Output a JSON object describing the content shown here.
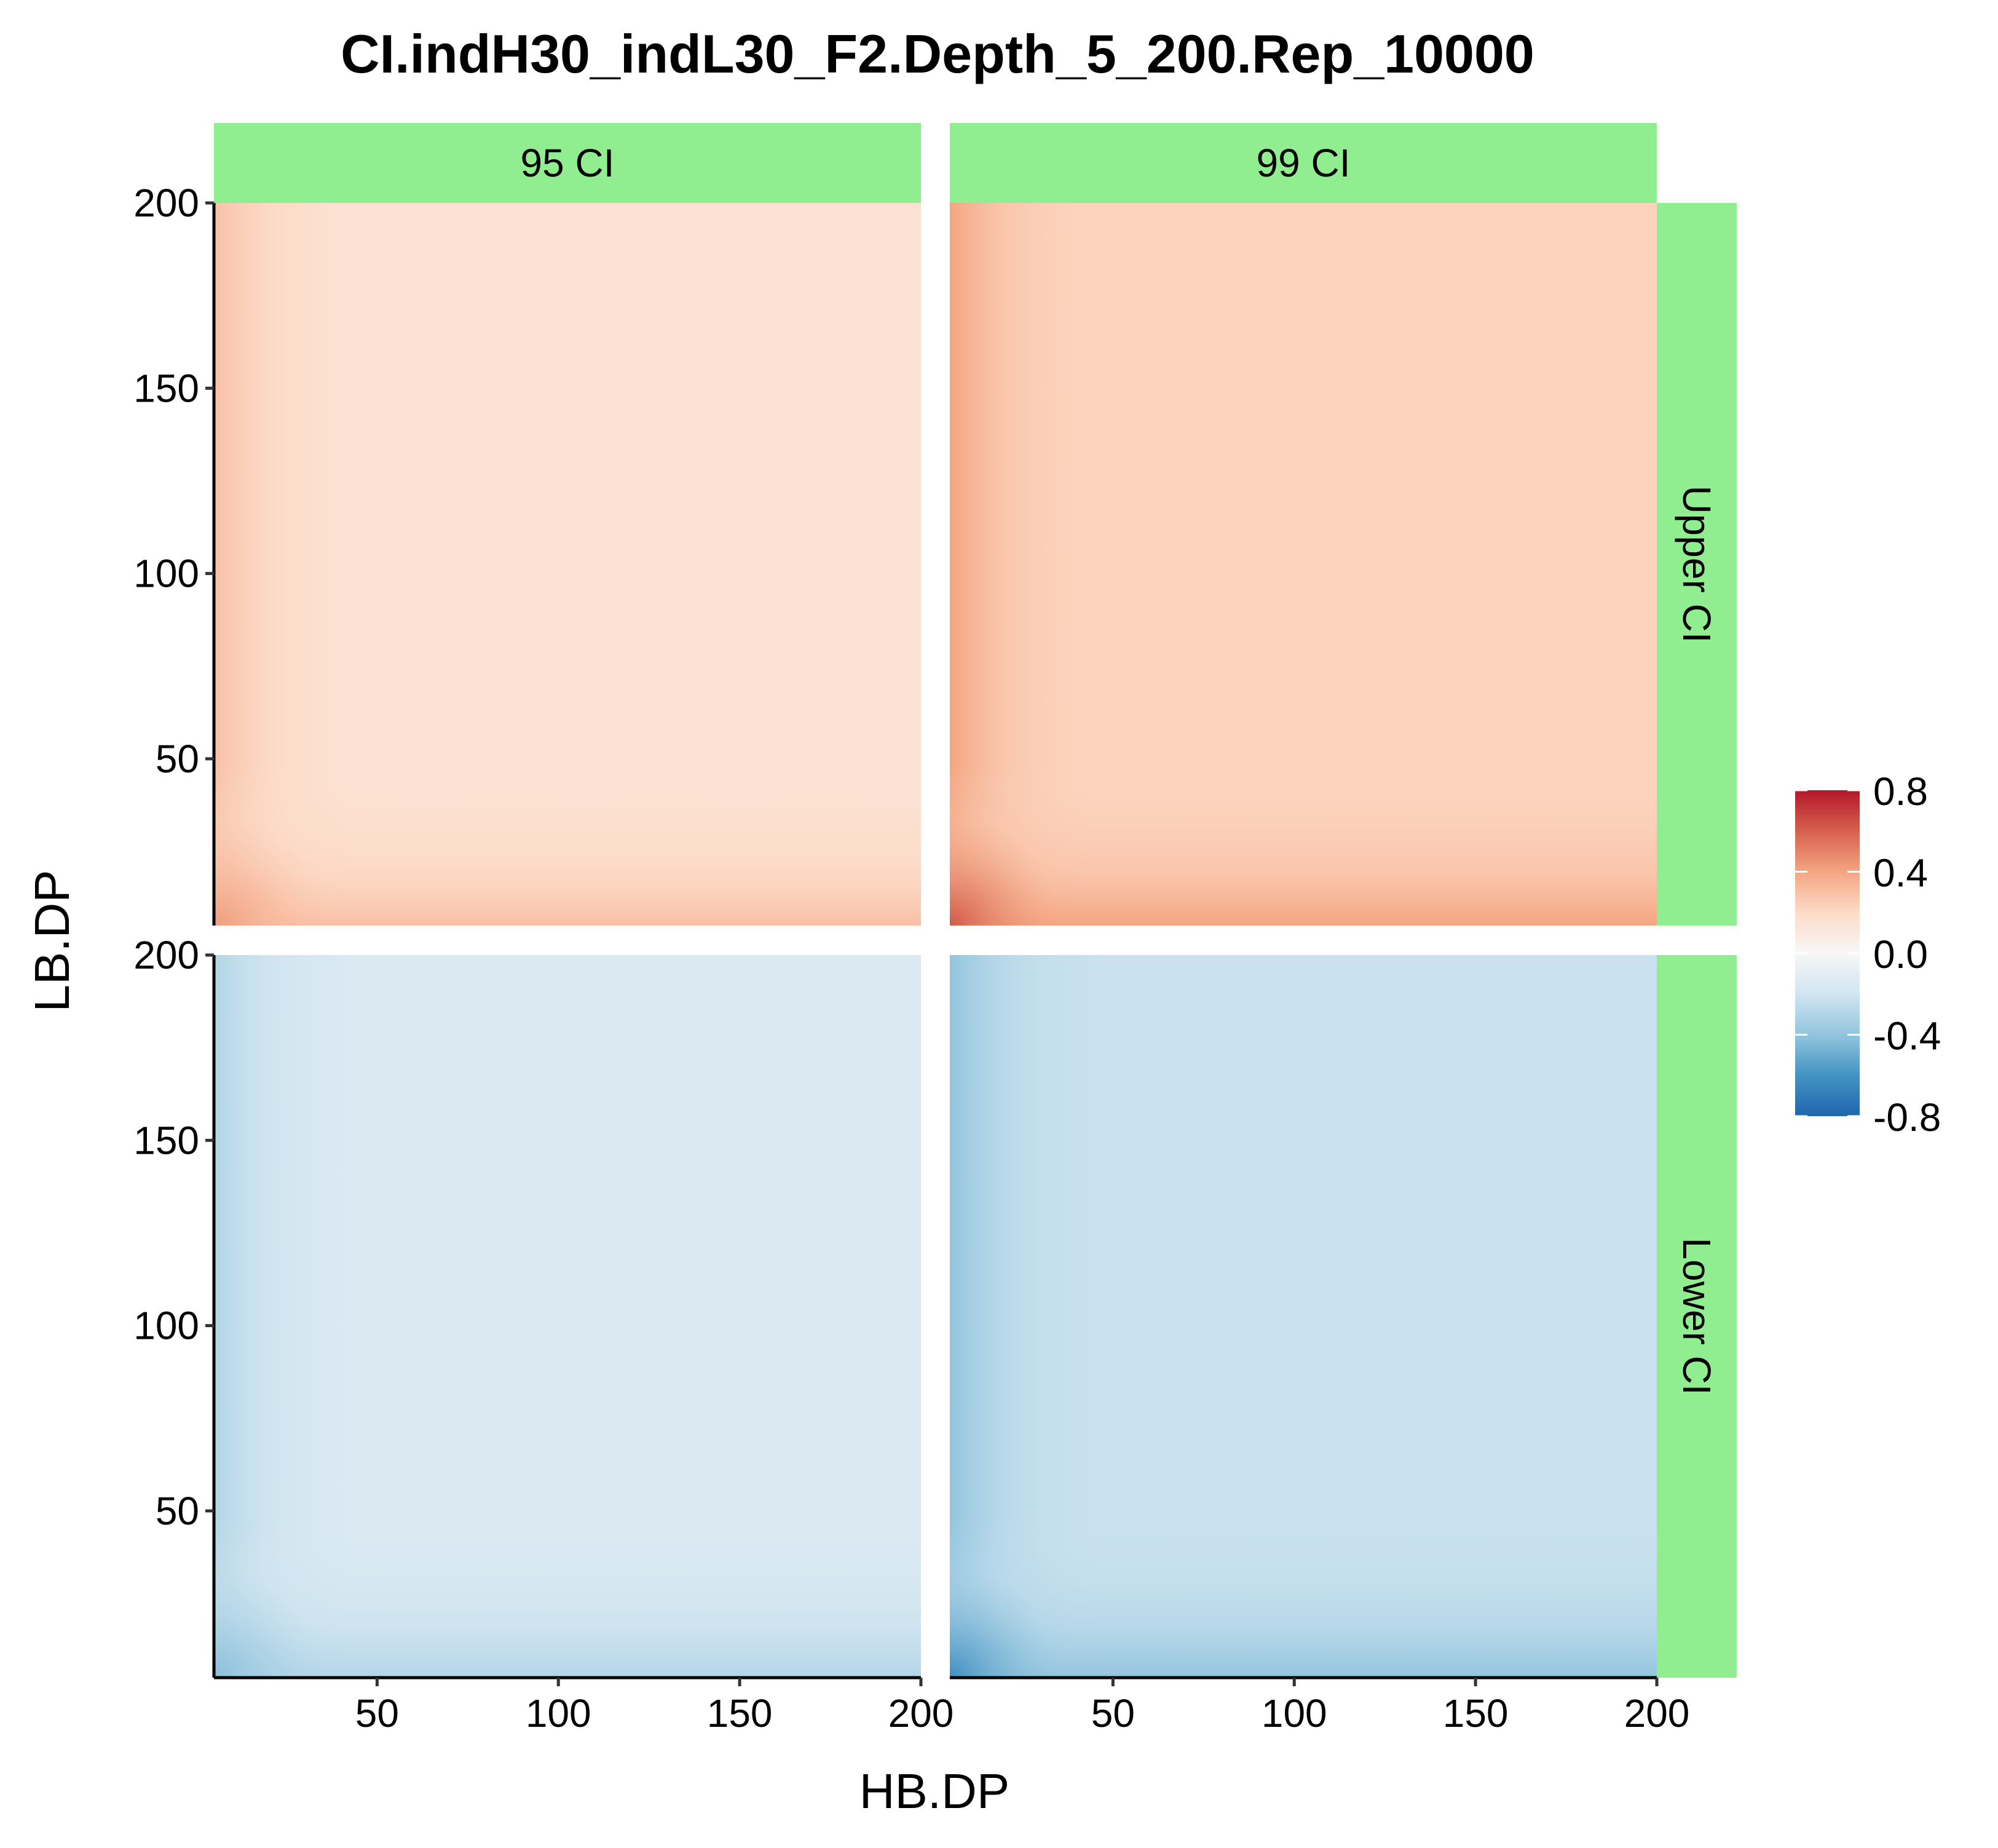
{
  "chart_data": {
    "type": "heatmap",
    "title": "CI.indH30_indL30_F2.Depth_5_200.Rep_10000",
    "xlabel": "HB.DP",
    "ylabel": "LB.DP",
    "x_range": [
      5,
      200
    ],
    "y_range": [
      5,
      200
    ],
    "x_ticks": [
      50,
      100,
      150,
      200
    ],
    "y_ticks": [
      50,
      100,
      150,
      200
    ],
    "x_tick_labels": [
      "50",
      "100",
      "150",
      "200"
    ],
    "y_tick_labels": [
      "50",
      "100",
      "150",
      "200"
    ],
    "facet_columns": [
      "95 CI",
      "99 CI"
    ],
    "facet_rows": [
      "Upper CI",
      "Lower CI"
    ],
    "strip_color": "#90EE90",
    "legend": {
      "position": "right",
      "limits": [
        -0.8,
        0.8
      ],
      "ticks": [
        0.8,
        0.4,
        0.0,
        -0.4,
        -0.8
      ],
      "tick_labels": [
        "0.8",
        "0.4",
        "0.0",
        "-0.4",
        "-0.8"
      ],
      "colors": [
        "#2166AC",
        "#4393C3",
        "#92C5DE",
        "#D1E5F0",
        "#F7F7F7",
        "#FDDBC7",
        "#F4A582",
        "#D6604D",
        "#B2182B"
      ]
    },
    "panels": [
      {
        "column": "95 CI",
        "row": "Upper CI",
        "plateau_value": 0.155,
        "edge_value": 0.3,
        "corner_value": 0.42
      },
      {
        "column": "99 CI",
        "row": "Upper CI",
        "plateau_value": 0.225,
        "edge_value": 0.4,
        "corner_value": 0.62
      },
      {
        "column": "95 CI",
        "row": "Lower CI",
        "plateau_value": -0.155,
        "edge_value": -0.3,
        "corner_value": -0.42
      },
      {
        "column": "99 CI",
        "row": "Lower CI",
        "plateau_value": -0.225,
        "edge_value": -0.4,
        "corner_value": -0.62
      }
    ]
  }
}
